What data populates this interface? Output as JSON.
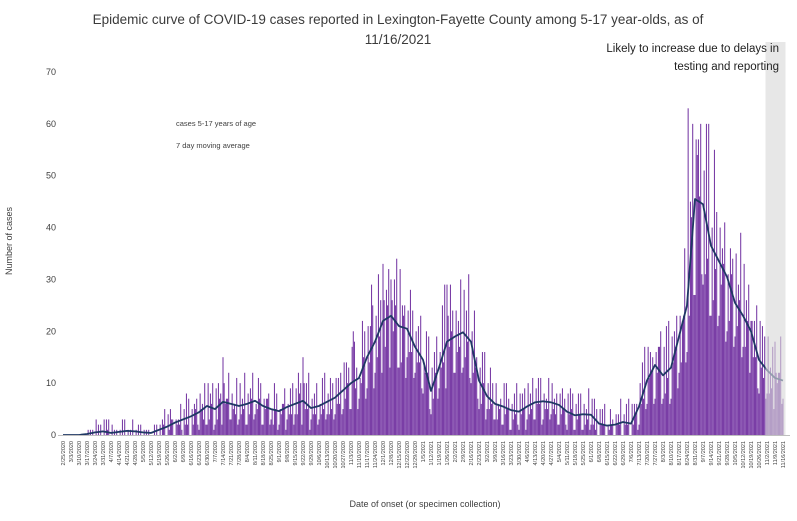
{
  "header": {
    "title": "Epidemic curve of COVID-19 cases reported in Lexington-Fayette County among 5-17 year-olds, as of 11/16/2021"
  },
  "annotation": {
    "text": "Likely to increase due to delays in testing and reporting"
  },
  "legend": {
    "items": [
      {
        "label": "cases 5-17 years of age",
        "swatch": "bar"
      },
      {
        "label": "7 day moving average",
        "swatch": "line"
      }
    ]
  },
  "axes": {
    "y_title": "Number of cases",
    "x_title": "Date of onset (or specimen collection)",
    "y_ticks": [
      0,
      10,
      20,
      30,
      40,
      50,
      60,
      70
    ]
  },
  "colors": {
    "bar": "#7030A0",
    "line": "#1F3864",
    "shade_band": "#D9D9D9",
    "axis_line": "#BFBFBF",
    "tick_text": "#404040",
    "title_text": "#3B3B3B"
  },
  "chart_data": {
    "type": "bar+line",
    "title": "Epidemic curve of COVID-19 cases reported in Lexington-Fayette County among 5-17 year-olds, as of 11/16/2021",
    "xlabel": "Date of onset (or specimen collection)",
    "ylabel": "Number of cases",
    "ylim": [
      0,
      70
    ],
    "grid": false,
    "legend_position": "upper-left-inside",
    "x_start_date": "2/25/2020",
    "x_end_date": "11/16/2021",
    "x_tick_interval": "weekly",
    "x_tick_labels": [
      "2/25/2020",
      "3/3/2020",
      "3/10/2020",
      "3/17/2020",
      "3/24/2020",
      "3/31/2020",
      "4/7/2020",
      "4/14/2020",
      "4/21/2020",
      "4/28/2020",
      "5/5/2020",
      "5/12/2020",
      "5/19/2020",
      "5/26/2020",
      "6/2/2020",
      "6/9/2020",
      "6/16/2020",
      "6/23/2020",
      "6/30/2020",
      "7/7/2020",
      "7/14/2020",
      "7/21/2020",
      "7/28/2020",
      "8/4/2020",
      "8/11/2020",
      "8/18/2020",
      "8/25/2020",
      "9/1/2020",
      "9/8/2020",
      "9/15/2020",
      "9/22/2020",
      "9/29/2020",
      "10/6/2020",
      "10/13/2020",
      "10/20/2020",
      "10/27/2020",
      "11/3/2020",
      "11/10/2020",
      "11/17/2020",
      "11/24/2020",
      "12/1/2020",
      "12/8/2020",
      "12/15/2020",
      "12/22/2020",
      "12/29/2020",
      "1/5/2021",
      "1/12/2021",
      "1/19/2021",
      "1/26/2021",
      "2/2/2021",
      "2/9/2021",
      "2/16/2021",
      "2/23/2021",
      "3/2/2021",
      "3/9/2021",
      "3/16/2021",
      "3/23/2021",
      "3/30/2021",
      "4/6/2021",
      "4/13/2021",
      "4/20/2021",
      "4/27/2021",
      "5/4/2021",
      "5/11/2021",
      "5/18/2021",
      "5/25/2021",
      "6/1/2021",
      "6/8/2021",
      "6/15/2021",
      "6/22/2021",
      "6/29/2021",
      "7/6/2021",
      "7/13/2021",
      "7/20/2021",
      "7/27/2021",
      "8/3/2021",
      "8/10/2021",
      "8/17/2021",
      "8/24/2021",
      "8/31/2021",
      "9/7/2021",
      "9/14/2021",
      "9/21/2021",
      "9/28/2021",
      "10/5/2021",
      "10/12/2021",
      "10/19/2021",
      "10/26/2021",
      "11/2/2021",
      "11/9/2021",
      "11/16/2021"
    ],
    "series": [
      {
        "name": "cases 5-17 years of age",
        "type": "bar",
        "resolution": "daily",
        "note": "daily bars estimated from figure; values fluctuate around the weekly 7-day-average envelope below",
        "notable_daily_values": [
          {
            "date": "7/14/2020",
            "i": 140,
            "value": 15
          },
          {
            "date": "9/22/2020",
            "i": 210,
            "value": 15
          },
          {
            "date": "10/29/2020",
            "i": 254,
            "value": 20
          },
          {
            "date": "11/21/2020",
            "i": 270,
            "value": 29
          },
          {
            "date": "12/1/2020",
            "i": 280,
            "value": 33
          },
          {
            "date": "12/8/2020",
            "i": 287,
            "value": 30
          },
          {
            "date": "1/26/2021",
            "i": 336,
            "value": 29
          },
          {
            "date": "7/24/2021",
            "i": 522,
            "value": 17
          },
          {
            "date": "8/25/2021",
            "i": 547,
            "value": 63
          },
          {
            "date": "9/2/2021",
            "i": 555,
            "value": 54
          },
          {
            "date": "10/19/2021",
            "i": 602,
            "value": 22
          },
          {
            "date": "11/3/2021",
            "i": 617,
            "value": 19
          },
          {
            "date": "11/9/2021",
            "i": 623,
            "value": 18
          }
        ]
      },
      {
        "name": "7 day moving average",
        "type": "line",
        "resolution": "weekly (aligned with x_tick_labels)",
        "weekly_values": [
          0,
          0,
          0,
          0.2,
          0.5,
          0.7,
          0.4,
          0.6,
          0.8,
          0.7,
          0.5,
          0.4,
          1.0,
          1.6,
          2.4,
          3.0,
          3.6,
          4.4,
          5.6,
          5.0,
          6.4,
          6.0,
          5.6,
          6.0,
          6.6,
          5.6,
          5.0,
          4.6,
          5.4,
          6.0,
          6.6,
          5.2,
          5.6,
          6.4,
          7.2,
          8.6,
          10.0,
          11.0,
          15.0,
          18.0,
          22.0,
          23.0,
          21.0,
          20.5,
          17.0,
          14.5,
          8.5,
          13.0,
          18.0,
          19.0,
          19.8,
          18.0,
          10.5,
          7.5,
          6.0,
          5.5,
          4.8,
          4.5,
          5.5,
          6.3,
          6.5,
          6.3,
          5.8,
          4.5,
          3.8,
          4.0,
          3.9,
          2.2,
          1.8,
          2.0,
          2.5,
          2.2,
          5.5,
          10.5,
          13.5,
          11.5,
          13.0,
          19.0,
          25.0,
          45.5,
          44.5,
          36.5,
          33.5,
          30.5,
          25.5,
          23.0,
          20.0,
          14.5,
          12.5,
          11.0,
          10.5
        ],
        "peak_value": 46,
        "peak_date_approx": "9/3/2021"
      }
    ],
    "shaded_region": {
      "from": "11/1/2021",
      "to": "11/18/2021",
      "meaning": "Likely to increase due to delays in testing and reporting"
    }
  }
}
